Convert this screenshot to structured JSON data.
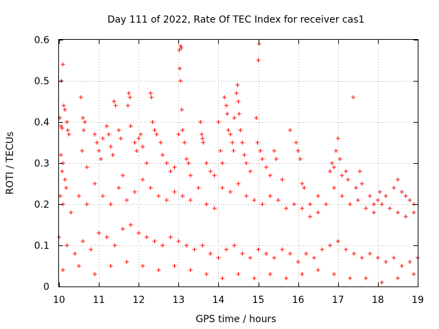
{
  "chart_data": {
    "type": "scatter",
    "title": "Day 111 of 2022, Rate Of TEC Index for receiver cas1",
    "xlabel": "GPS time / hours",
    "ylabel": "ROTI / TECUs",
    "xlim": [
      10,
      19
    ],
    "ylim": [
      0,
      0.6
    ],
    "xticks": [
      "10",
      "11",
      "12",
      "13",
      "14",
      "15",
      "16",
      "17",
      "18",
      "19"
    ],
    "yticks": [
      "0",
      "0.1",
      "0.2",
      "0.3",
      "0.4",
      "0.5",
      "0.6"
    ],
    "xtick_values": [
      10,
      11,
      12,
      13,
      14,
      15,
      16,
      17,
      18,
      19
    ],
    "ytick_values": [
      0,
      0.1,
      0.2,
      0.3,
      0.4,
      0.5,
      0.6
    ],
    "grid": true,
    "marker": "+",
    "color": "#ff0000",
    "series": [
      {
        "values": [
          [
            10.02,
            0.41
          ],
          [
            10.05,
            0.39
          ],
          [
            10.08,
            0.385
          ],
          [
            10.06,
            0.5
          ],
          [
            10.1,
            0.54
          ],
          [
            10.12,
            0.44
          ],
          [
            10.15,
            0.43
          ],
          [
            10.2,
            0.4
          ],
          [
            10.22,
            0.38
          ],
          [
            10.25,
            0.37
          ],
          [
            10.05,
            0.32
          ],
          [
            10.1,
            0.3
          ],
          [
            10.08,
            0.28
          ],
          [
            10.15,
            0.26
          ],
          [
            10.03,
            0.22
          ],
          [
            10.18,
            0.24
          ],
          [
            10.55,
            0.46
          ],
          [
            10.6,
            0.41
          ],
          [
            10.62,
            0.38
          ],
          [
            10.65,
            0.4
          ],
          [
            10.58,
            0.33
          ],
          [
            10.7,
            0.29
          ],
          [
            10.9,
            0.37
          ],
          [
            10.95,
            0.35
          ],
          [
            11.0,
            0.33
          ],
          [
            11.05,
            0.31
          ],
          [
            11.1,
            0.36
          ],
          [
            11.2,
            0.39
          ],
          [
            11.25,
            0.37
          ],
          [
            11.3,
            0.34
          ],
          [
            11.35,
            0.32
          ],
          [
            11.38,
            0.45
          ],
          [
            11.42,
            0.44
          ],
          [
            11.5,
            0.38
          ],
          [
            11.55,
            0.36
          ],
          [
            11.6,
            0.27
          ],
          [
            11.75,
            0.47
          ],
          [
            11.73,
            0.44
          ],
          [
            11.78,
            0.46
          ],
          [
            11.8,
            0.39
          ],
          [
            11.9,
            0.35
          ],
          [
            11.95,
            0.33
          ],
          [
            12.0,
            0.36
          ],
          [
            12.05,
            0.37
          ],
          [
            12.1,
            0.34
          ],
          [
            12.2,
            0.3
          ],
          [
            12.3,
            0.47
          ],
          [
            12.32,
            0.46
          ],
          [
            12.35,
            0.4
          ],
          [
            12.4,
            0.38
          ],
          [
            12.45,
            0.37
          ],
          [
            12.55,
            0.35
          ],
          [
            12.6,
            0.32
          ],
          [
            12.7,
            0.3
          ],
          [
            12.8,
            0.28
          ],
          [
            12.9,
            0.29
          ],
          [
            13.02,
            0.575
          ],
          [
            13.05,
            0.585
          ],
          [
            13.07,
            0.58
          ],
          [
            13.03,
            0.53
          ],
          [
            13.05,
            0.5
          ],
          [
            13.08,
            0.43
          ],
          [
            13.1,
            0.38
          ],
          [
            13.15,
            0.35
          ],
          [
            13.0,
            0.37
          ],
          [
            13.2,
            0.31
          ],
          [
            13.25,
            0.3
          ],
          [
            13.3,
            0.27
          ],
          [
            13.55,
            0.4
          ],
          [
            13.58,
            0.37
          ],
          [
            13.6,
            0.36
          ],
          [
            13.62,
            0.35
          ],
          [
            13.7,
            0.3
          ],
          [
            13.8,
            0.28
          ],
          [
            13.9,
            0.27
          ],
          [
            14.0,
            0.4
          ],
          [
            14.05,
            0.33
          ],
          [
            14.1,
            0.3
          ],
          [
            14.15,
            0.46
          ],
          [
            14.2,
            0.44
          ],
          [
            14.22,
            0.42
          ],
          [
            14.25,
            0.38
          ],
          [
            14.3,
            0.37
          ],
          [
            14.35,
            0.35
          ],
          [
            14.38,
            0.33
          ],
          [
            14.4,
            0.41
          ],
          [
            14.45,
            0.47
          ],
          [
            14.48,
            0.49
          ],
          [
            14.5,
            0.45
          ],
          [
            14.52,
            0.42
          ],
          [
            14.55,
            0.38
          ],
          [
            14.6,
            0.35
          ],
          [
            14.65,
            0.32
          ],
          [
            14.7,
            0.3
          ],
          [
            14.8,
            0.28
          ],
          [
            14.95,
            0.41
          ],
          [
            14.98,
            0.35
          ],
          [
            15.0,
            0.55
          ],
          [
            15.02,
            0.59
          ],
          [
            15.05,
            0.33
          ],
          [
            15.1,
            0.31
          ],
          [
            15.2,
            0.29
          ],
          [
            15.3,
            0.27
          ],
          [
            15.4,
            0.33
          ],
          [
            15.45,
            0.31
          ],
          [
            15.6,
            0.26
          ],
          [
            15.8,
            0.38
          ],
          [
            15.95,
            0.35
          ],
          [
            16.0,
            0.33
          ],
          [
            16.05,
            0.31
          ],
          [
            16.1,
            0.25
          ],
          [
            16.15,
            0.24
          ],
          [
            16.3,
            0.2
          ],
          [
            16.5,
            0.22
          ],
          [
            16.8,
            0.28
          ],
          [
            16.85,
            0.3
          ],
          [
            16.9,
            0.29
          ],
          [
            16.95,
            0.33
          ],
          [
            17.0,
            0.36
          ],
          [
            17.05,
            0.31
          ],
          [
            17.1,
            0.27
          ],
          [
            17.2,
            0.28
          ],
          [
            17.25,
            0.26
          ],
          [
            17.38,
            0.46
          ],
          [
            17.45,
            0.24
          ],
          [
            17.55,
            0.28
          ],
          [
            17.6,
            0.25
          ],
          [
            17.8,
            0.22
          ],
          [
            17.9,
            0.2
          ],
          [
            18.0,
            0.21
          ],
          [
            18.05,
            0.23
          ],
          [
            18.2,
            0.22
          ],
          [
            18.4,
            0.24
          ],
          [
            18.5,
            0.26
          ],
          [
            18.6,
            0.23
          ],
          [
            18.7,
            0.22
          ],
          [
            18.8,
            0.21
          ],
          [
            18.9,
            0.2
          ],
          [
            10.1,
            0.2
          ],
          [
            10.3,
            0.18
          ],
          [
            10.5,
            0.22
          ],
          [
            10.7,
            0.2
          ],
          [
            10.9,
            0.25
          ],
          [
            11.1,
            0.22
          ],
          [
            11.3,
            0.2
          ],
          [
            11.5,
            0.24
          ],
          [
            11.7,
            0.21
          ],
          [
            11.9,
            0.23
          ],
          [
            12.1,
            0.26
          ],
          [
            12.3,
            0.24
          ],
          [
            12.5,
            0.22
          ],
          [
            12.7,
            0.21
          ],
          [
            12.9,
            0.23
          ],
          [
            13.1,
            0.22
          ],
          [
            13.3,
            0.21
          ],
          [
            13.5,
            0.24
          ],
          [
            13.7,
            0.2
          ],
          [
            13.9,
            0.19
          ],
          [
            14.1,
            0.24
          ],
          [
            14.3,
            0.23
          ],
          [
            14.5,
            0.25
          ],
          [
            14.7,
            0.22
          ],
          [
            14.9,
            0.21
          ],
          [
            15.1,
            0.2
          ],
          [
            15.3,
            0.22
          ],
          [
            15.5,
            0.21
          ],
          [
            15.7,
            0.19
          ],
          [
            15.9,
            0.2
          ],
          [
            16.1,
            0.19
          ],
          [
            16.3,
            0.17
          ],
          [
            16.5,
            0.18
          ],
          [
            16.7,
            0.2
          ],
          [
            16.9,
            0.24
          ],
          [
            17.1,
            0.22
          ],
          [
            17.3,
            0.2
          ],
          [
            17.5,
            0.21
          ],
          [
            17.7,
            0.19
          ],
          [
            17.9,
            0.18
          ],
          [
            18.1,
            0.2
          ],
          [
            18.3,
            0.19
          ],
          [
            18.5,
            0.18
          ],
          [
            18.7,
            0.17
          ],
          [
            18.9,
            0.18
          ],
          [
            10.0,
            0.12
          ],
          [
            10.2,
            0.1
          ],
          [
            10.4,
            0.08
          ],
          [
            10.6,
            0.11
          ],
          [
            10.8,
            0.09
          ],
          [
            11.0,
            0.13
          ],
          [
            11.2,
            0.12
          ],
          [
            11.4,
            0.1
          ],
          [
            11.6,
            0.14
          ],
          [
            11.8,
            0.15
          ],
          [
            12.0,
            0.13
          ],
          [
            12.2,
            0.12
          ],
          [
            12.4,
            0.11
          ],
          [
            12.6,
            0.1
          ],
          [
            12.8,
            0.12
          ],
          [
            13.0,
            0.11
          ],
          [
            13.2,
            0.1
          ],
          [
            13.4,
            0.09
          ],
          [
            13.6,
            0.1
          ],
          [
            13.8,
            0.08
          ],
          [
            14.0,
            0.07
          ],
          [
            14.2,
            0.09
          ],
          [
            14.4,
            0.1
          ],
          [
            14.6,
            0.08
          ],
          [
            14.8,
            0.07
          ],
          [
            15.0,
            0.09
          ],
          [
            15.2,
            0.08
          ],
          [
            15.4,
            0.07
          ],
          [
            15.6,
            0.09
          ],
          [
            15.8,
            0.08
          ],
          [
            16.0,
            0.06
          ],
          [
            16.2,
            0.08
          ],
          [
            16.4,
            0.07
          ],
          [
            16.6,
            0.09
          ],
          [
            16.8,
            0.1
          ],
          [
            17.0,
            0.11
          ],
          [
            17.2,
            0.09
          ],
          [
            17.4,
            0.08
          ],
          [
            17.6,
            0.07
          ],
          [
            17.8,
            0.08
          ],
          [
            18.0,
            0.07
          ],
          [
            18.2,
            0.06
          ],
          [
            18.4,
            0.07
          ],
          [
            18.6,
            0.05
          ],
          [
            18.8,
            0.06
          ],
          [
            19.0,
            0.07
          ],
          [
            10.1,
            0.04
          ],
          [
            10.5,
            0.05
          ],
          [
            10.9,
            0.03
          ],
          [
            11.3,
            0.05
          ],
          [
            11.7,
            0.06
          ],
          [
            12.1,
            0.05
          ],
          [
            12.5,
            0.04
          ],
          [
            12.9,
            0.05
          ],
          [
            13.3,
            0.04
          ],
          [
            13.7,
            0.03
          ],
          [
            14.1,
            0.02
          ],
          [
            14.5,
            0.03
          ],
          [
            14.9,
            0.02
          ],
          [
            15.3,
            0.03
          ],
          [
            15.7,
            0.02
          ],
          [
            16.1,
            0.03
          ],
          [
            16.5,
            0.04
          ],
          [
            16.9,
            0.03
          ],
          [
            17.3,
            0.02
          ],
          [
            17.7,
            0.02
          ],
          [
            18.1,
            0.01
          ],
          [
            18.5,
            0.02
          ],
          [
            18.9,
            0.03
          ]
        ]
      }
    ]
  }
}
